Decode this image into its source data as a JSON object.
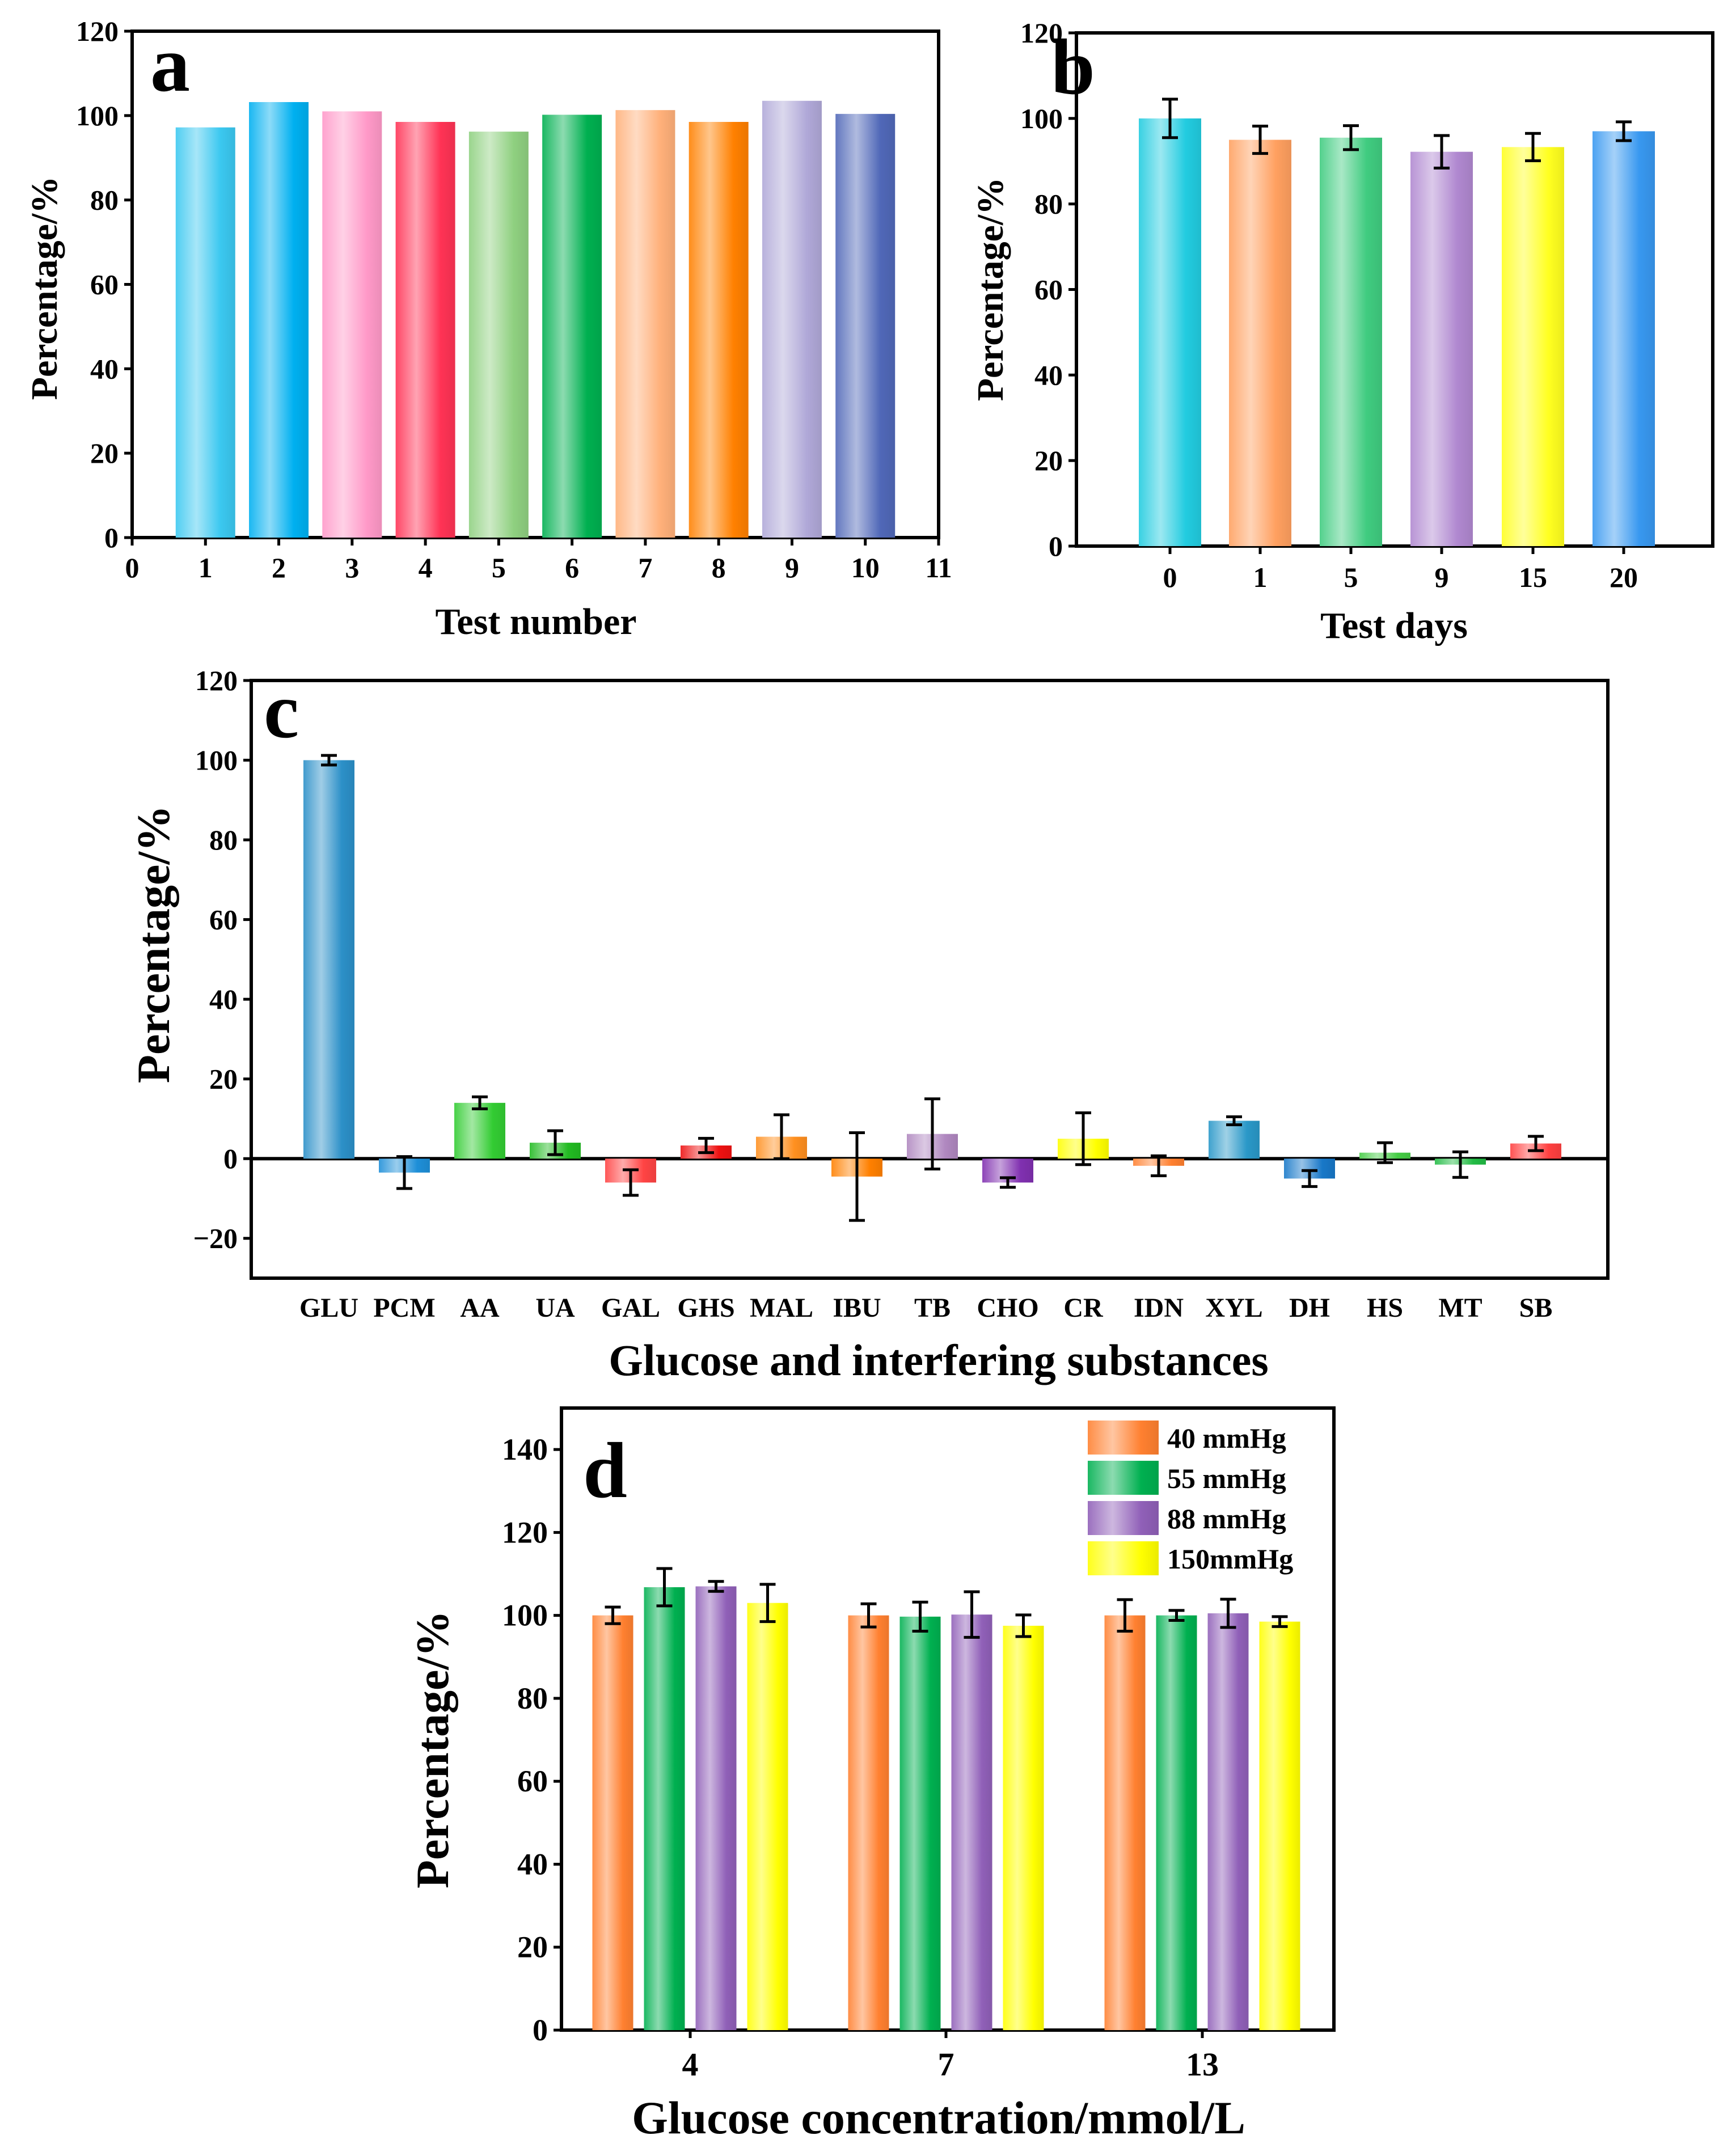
{
  "chart_data": [
    {
      "id": "a",
      "type": "bar",
      "panel_label": "a",
      "xlabel": "Test number",
      "ylabel": "Percentage/%",
      "xlim": [
        0,
        11
      ],
      "ylim": [
        0,
        120
      ],
      "xticks": [
        "0",
        "1",
        "2",
        "3",
        "4",
        "5",
        "6",
        "7",
        "8",
        "9",
        "10",
        "11"
      ],
      "yticks": [
        "0",
        "20",
        "40",
        "60",
        "80",
        "100",
        "120"
      ],
      "categories": [
        "1",
        "2",
        "3",
        "4",
        "5",
        "6",
        "7",
        "8",
        "9",
        "10"
      ],
      "values": [
        97.2,
        103.2,
        101.0,
        98.5,
        96.2,
        100.2,
        101.3,
        98.5,
        103.5,
        100.4
      ],
      "colors": [
        "#3bc8f0",
        "#00b0f0",
        "#ff99c8",
        "#ff3355",
        "#8fd080",
        "#00b050",
        "#ffb07a",
        "#ff8000",
        "#b0a8d8",
        "#5068b8"
      ]
    },
    {
      "id": "b",
      "type": "bar",
      "panel_label": "b",
      "xlabel": "Test days",
      "ylabel": "Percentage/%",
      "ylim": [
        0,
        120
      ],
      "yticks": [
        "0",
        "20",
        "40",
        "60",
        "80",
        "100",
        "120"
      ],
      "categories": [
        "0",
        "1",
        "5",
        "9",
        "15",
        "20"
      ],
      "values": [
        100.0,
        95.0,
        95.5,
        92.2,
        93.3,
        97.0
      ],
      "errors": [
        4.5,
        3.2,
        2.8,
        3.8,
        3.2,
        2.2
      ],
      "colors": [
        "#22cce0",
        "#ffa060",
        "#40cc80",
        "#b088d0",
        "#ffff20",
        "#3898f0"
      ]
    },
    {
      "id": "c",
      "type": "bar",
      "panel_label": "c",
      "xlabel": "Glucose and  interfering substances",
      "ylabel": "Percentage/%",
      "ylim": [
        -30,
        120
      ],
      "yticks": [
        "−20",
        "0",
        "20",
        "40",
        "60",
        "80",
        "100",
        "120"
      ],
      "categories": [
        "GLU",
        "PCM",
        "AA",
        "UA",
        "GAL",
        "GHS",
        "MAL",
        "IBU",
        "TB",
        "CHO",
        "CR",
        "IDN",
        "XYL",
        "DH",
        "HS",
        "MT",
        "SB"
      ],
      "values": [
        100.0,
        -3.5,
        14.0,
        4.0,
        -6.0,
        3.3,
        5.5,
        -4.5,
        6.2,
        -6.0,
        5.0,
        -1.8,
        9.5,
        -5.0,
        1.5,
        -1.5,
        3.8
      ],
      "errors": [
        1.2,
        4.0,
        1.5,
        3.0,
        3.2,
        1.8,
        5.5,
        11.0,
        8.8,
        1.2,
        6.5,
        2.5,
        1.0,
        2.0,
        2.5,
        3.2,
        1.8
      ],
      "colors": [
        "#2c90c8",
        "#1e8fd8",
        "#33cc33",
        "#22bb22",
        "#ff4444",
        "#ee1111",
        "#ff9020",
        "#ff8000",
        "#b088c0",
        "#8030b0",
        "#ffff00",
        "#ff8030",
        "#2a98c8",
        "#1878c8",
        "#44cc44",
        "#22bb44",
        "#ff4040"
      ]
    },
    {
      "id": "d",
      "type": "bar",
      "panel_label": "d",
      "xlabel": "Glucose concentration/mmol/L",
      "ylabel": "Percentage/%",
      "ylim": [
        0,
        150
      ],
      "yticks": [
        "0",
        "20",
        "40",
        "60",
        "80",
        "100",
        "120",
        "140"
      ],
      "categories": [
        "4",
        "7",
        "13"
      ],
      "series": [
        {
          "name": "40 mmHg",
          "color": "#ff8030",
          "values": [
            100.0,
            100.0,
            100.0
          ],
          "errors": [
            2.0,
            2.8,
            3.8
          ]
        },
        {
          "name": "55 mmHg",
          "color": "#00b050",
          "values": [
            106.8,
            99.7,
            100.0
          ],
          "errors": [
            4.5,
            3.5,
            1.2
          ]
        },
        {
          "name": "88 mmHg",
          "color": "#9060b8",
          "values": [
            107.0,
            100.2,
            100.5
          ],
          "errors": [
            1.2,
            5.5,
            3.4
          ]
        },
        {
          "name": "150mmHg",
          "color": "#ffff00",
          "values": [
            103.0,
            97.5,
            98.5
          ],
          "errors": [
            4.5,
            2.6,
            1.2
          ]
        }
      ]
    }
  ]
}
